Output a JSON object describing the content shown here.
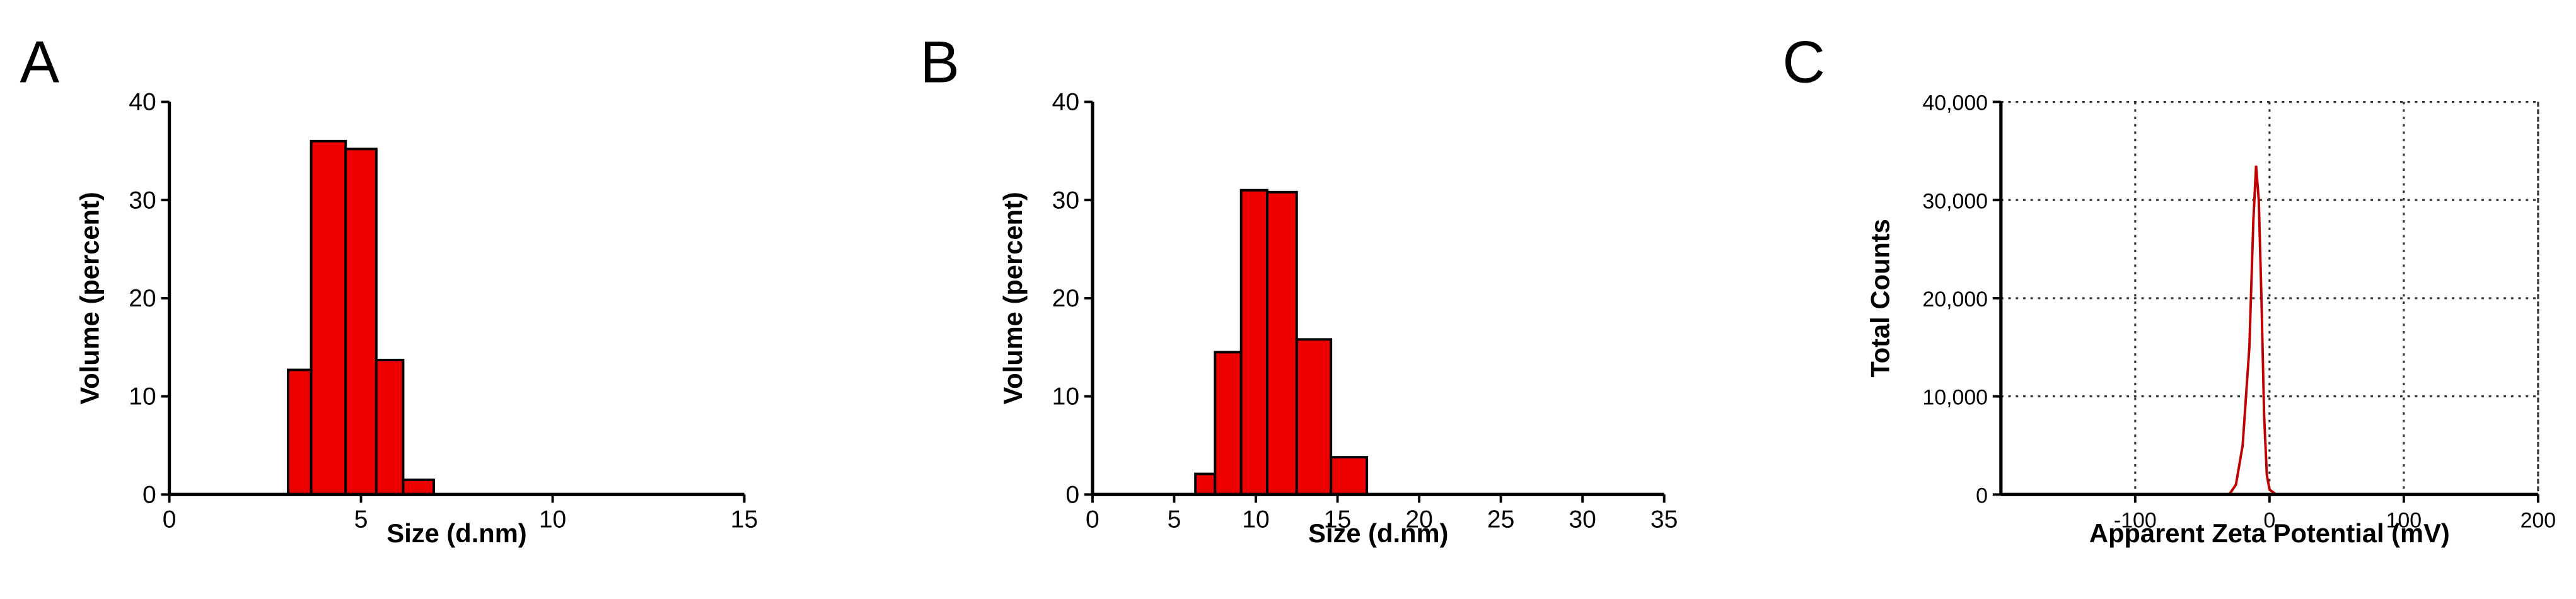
{
  "chart_data": [
    {
      "type": "histogram",
      "panel_label": "A",
      "xlabel": "Size (d.nm)",
      "ylabel": "Volume (percent)",
      "bins": [
        3.1,
        3.7,
        4.6,
        5.4,
        6.1,
        6.9
      ],
      "values": [
        12.7,
        36,
        35.2,
        13.7,
        1.5
      ],
      "color": "#ee0000",
      "xlim": [
        0,
        15
      ],
      "xticks": [
        0,
        5,
        10,
        15
      ],
      "ylim": [
        0,
        40
      ],
      "yticks": [
        0,
        10,
        20,
        30,
        40
      ],
      "grid": false
    },
    {
      "type": "histogram",
      "panel_label": "B",
      "xlabel": "Size (d.nm)",
      "ylabel": "Volume (percent)",
      "bins": [
        6.3,
        7.5,
        9.1,
        10.7,
        12.5,
        14.6,
        16.8
      ],
      "values": [
        2.1,
        14.5,
        31,
        30.8,
        15.8,
        3.8
      ],
      "color": "#ee0000",
      "xlim": [
        0,
        35
      ],
      "xticks": [
        0,
        5,
        10,
        15,
        20,
        25,
        30,
        35
      ],
      "ylim": [
        0,
        40
      ],
      "yticks": [
        0,
        10,
        20,
        30,
        40
      ],
      "grid": false
    },
    {
      "type": "line",
      "panel_label": "C",
      "xlabel": "Apparent Zeta Potential (mV)",
      "ylabel": "Total Counts",
      "x": [
        -150,
        -30,
        -25,
        -20,
        -15,
        -12,
        -10,
        -8,
        -6,
        -4,
        -2,
        0,
        5,
        150
      ],
      "values": [
        0,
        0,
        1000,
        5000,
        15000,
        28000,
        33500,
        30000,
        20000,
        8000,
        2000,
        500,
        0,
        0
      ],
      "color": "#c00000",
      "xlim": [
        -200,
        200
      ],
      "xticks": [
        -100,
        0,
        100,
        200
      ],
      "ylim": [
        0,
        40000
      ],
      "yticks": [
        0,
        {
          "value": 10000,
          "label": "10,000"
        },
        {
          "value": 20000,
          "label": "20,000"
        },
        {
          "value": 30000,
          "label": "30,000"
        },
        {
          "value": 40000,
          "label": "40,000"
        }
      ],
      "grid": true
    }
  ]
}
